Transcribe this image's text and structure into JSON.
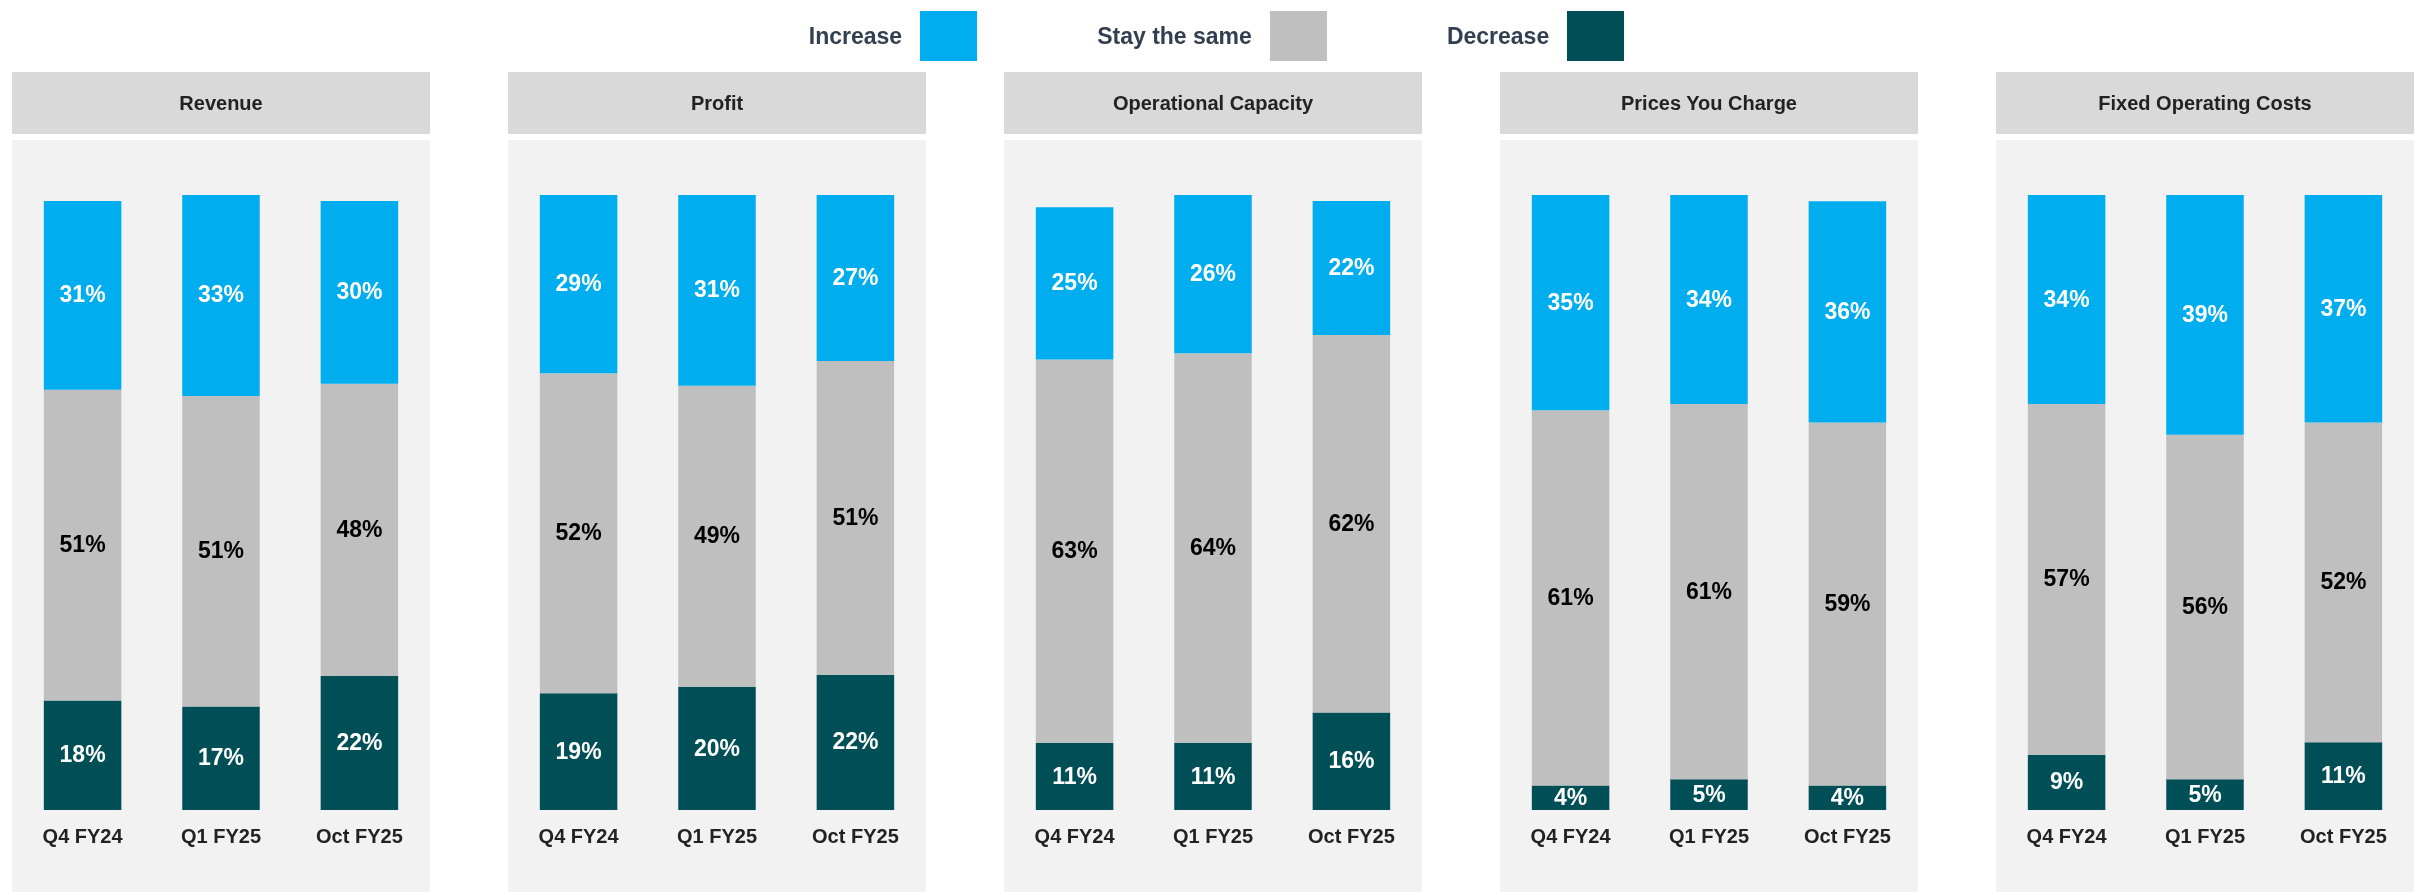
{
  "chart_data": [
    {
      "type": "bar",
      "title": "Revenue",
      "stacked": true,
      "legend": "top",
      "categories": [
        "Q4 FY24",
        "Q1 FY25",
        "Oct FY25"
      ],
      "series": [
        {
          "name": "Decrease",
          "color": "#004e56",
          "values": [
            18,
            17,
            22
          ],
          "value_labels": [
            "18%",
            "17%",
            "22%"
          ]
        },
        {
          "name": "Stay the same",
          "color": "#bfbfbf",
          "values": [
            51,
            51,
            48
          ],
          "value_labels": [
            "51%",
            "51%",
            "48%"
          ]
        },
        {
          "name": "Increase",
          "color": "#00adef",
          "values": [
            31,
            33,
            30
          ],
          "value_labels": [
            "31%",
            "33%",
            "30%"
          ]
        }
      ]
    },
    {
      "type": "bar",
      "title": "Profit",
      "stacked": true,
      "categories": [
        "Q4 FY24",
        "Q1 FY25",
        "Oct FY25"
      ],
      "series": [
        {
          "color": "#004e56",
          "values": [
            19,
            20,
            22
          ],
          "value_labels": [
            "19%",
            "20%",
            "22%"
          ]
        },
        {
          "color": "#bfbfbf",
          "values": [
            52,
            49,
            51
          ],
          "value_labels": [
            "52%",
            "49%",
            "51%"
          ]
        },
        {
          "color": "#00adef",
          "values": [
            29,
            31,
            27
          ],
          "value_labels": [
            "29%",
            "31%",
            "27%"
          ]
        }
      ]
    },
    {
      "type": "bar",
      "title": "Operational Capacity",
      "stacked": true,
      "categories": [
        "Q4 FY24",
        "Q1 FY25",
        "Oct FY25"
      ],
      "series": [
        {
          "color": "#004e56",
          "values": [
            11,
            11,
            16
          ],
          "value_labels": [
            "11%",
            "11%",
            "16%"
          ]
        },
        {
          "color": "#bfbfbf",
          "values": [
            63,
            64,
            62
          ],
          "value_labels": [
            "63%",
            "64%",
            "62%"
          ]
        },
        {
          "color": "#00adef",
          "values": [
            25,
            26,
            22
          ],
          "value_labels": [
            "25%",
            "26%",
            "22%"
          ]
        }
      ]
    },
    {
      "type": "bar",
      "title": "Prices You Charge",
      "stacked": true,
      "categories": [
        "Q4 FY24",
        "Q1 FY25",
        "Oct FY25"
      ],
      "series": [
        {
          "color": "#004e56",
          "values": [
            4,
            5,
            4
          ],
          "value_labels": [
            "4%",
            "5%",
            "4%"
          ]
        },
        {
          "color": "#bfbfbf",
          "values": [
            61,
            61,
            59
          ],
          "value_labels": [
            "61%",
            "61%",
            "59%"
          ]
        },
        {
          "color": "#00adef",
          "values": [
            35,
            34,
            36
          ],
          "value_labels": [
            "35%",
            "34%",
            "36%"
          ]
        }
      ]
    },
    {
      "type": "bar",
      "title": "Fixed Operating Costs",
      "stacked": true,
      "categories": [
        "Q4 FY24",
        "Q1 FY25",
        "Oct FY25"
      ],
      "series": [
        {
          "color": "#004e56",
          "values": [
            9,
            5,
            11
          ],
          "value_labels": [
            "9%",
            "5%",
            "11%"
          ]
        },
        {
          "color": "#bfbfbf",
          "values": [
            57,
            56,
            52
          ],
          "value_labels": [
            "57%",
            "56%",
            "52%"
          ]
        },
        {
          "color": "#00adef",
          "values": [
            34,
            39,
            37
          ],
          "value_labels": [
            "34%",
            "39%",
            "37%"
          ]
        }
      ]
    }
  ]
}
